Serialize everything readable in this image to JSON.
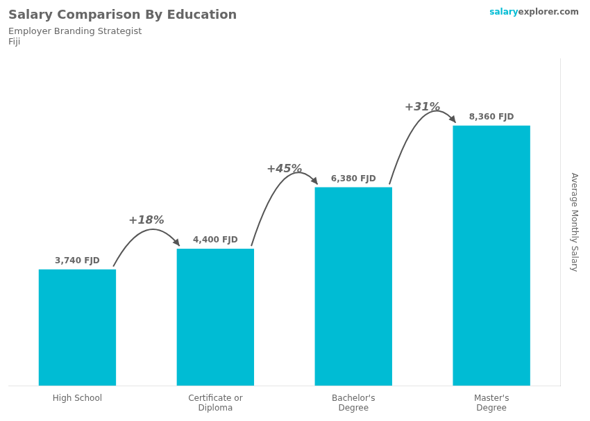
{
  "chart_data": {
    "type": "bar",
    "title": "Salary Comparison By Education",
    "subtitle": "Employer Branding Strategist",
    "country": "Fiji",
    "watermark": [
      "salary",
      "explorer.com"
    ],
    "ylabel": "Average Monthly Salary",
    "categories": [
      "High School",
      "Certificate or\nDiploma",
      "Bachelor's\nDegree",
      "Master's\nDegree"
    ],
    "values": [
      3740,
      4400,
      6380,
      8360
    ],
    "value_labels": [
      "3,740 FJD",
      "4,400 FJD",
      "6,380 FJD",
      "8,360 FJD"
    ],
    "annotations": [
      "+18%",
      "+45%",
      "+31%"
    ],
    "color": "#00bcd4",
    "ylim": [
      0,
      10500
    ],
    "grid": false,
    "data_labels": true,
    "tick_labels": "x"
  }
}
